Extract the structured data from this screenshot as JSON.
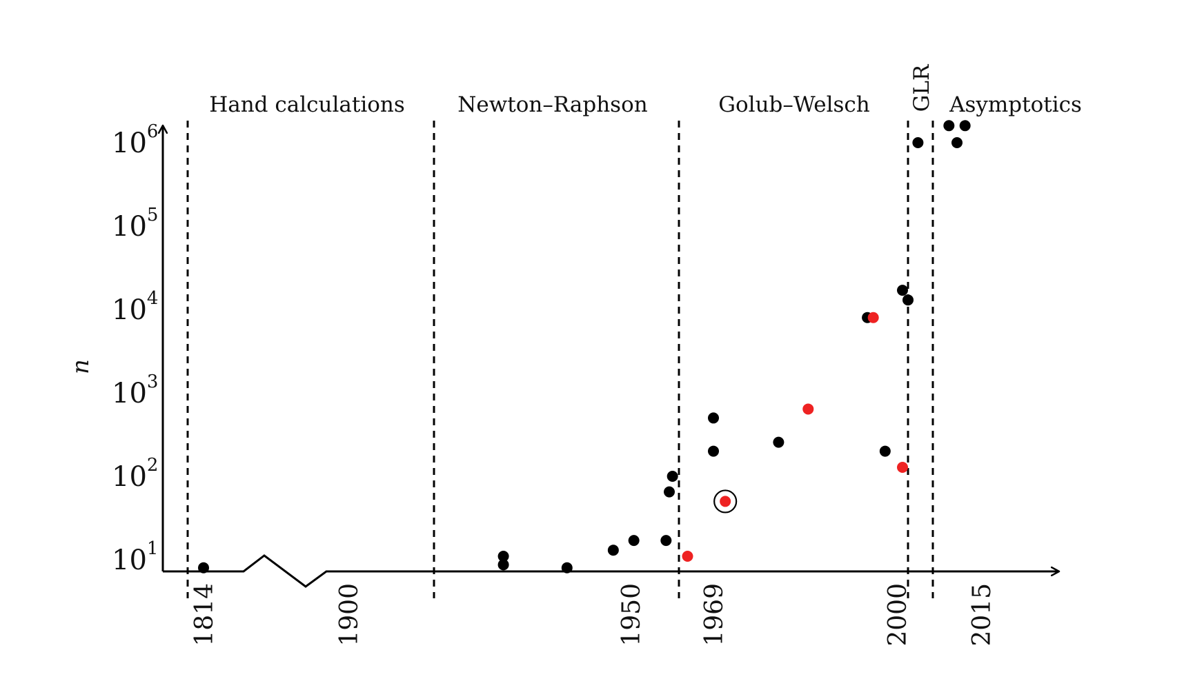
{
  "chart_data": {
    "type": "scatter",
    "title": "",
    "xlabel": "",
    "ylabel": "n",
    "y_scale": "log",
    "y_tick_labels": [
      {
        "base": "10",
        "exp": "1",
        "value": 10
      },
      {
        "base": "10",
        "exp": "2",
        "value": 100
      },
      {
        "base": "10",
        "exp": "3",
        "value": 1000
      },
      {
        "base": "10",
        "exp": "4",
        "value": 10000
      },
      {
        "base": "10",
        "exp": "5",
        "value": 100000
      },
      {
        "base": "10",
        "exp": "6",
        "value": 1000000
      }
    ],
    "x_ticks": [
      "1814",
      "1900",
      "1950",
      "1969",
      "2000",
      "2015"
    ],
    "x_axis_break": "between 1814 and 1900",
    "eras": [
      {
        "label": "Hand calculations",
        "orientation": "horizontal"
      },
      {
        "label": "Newton–Raphson",
        "orientation": "horizontal"
      },
      {
        "label": "Golub–Welsch",
        "orientation": "horizontal"
      },
      {
        "label": "GLR",
        "orientation": "vertical"
      },
      {
        "label": "Asymptotics",
        "orientation": "horizontal"
      }
    ],
    "era_boundaries": [
      1810,
      1916,
      1965,
      2004,
      2009
    ],
    "series": [
      {
        "name": "black",
        "color": "#000000",
        "points": [
          {
            "year": 1814,
            "n": 8
          },
          {
            "year": 1928,
            "n": 11
          },
          {
            "year": 1928,
            "n": 8.7
          },
          {
            "year": 1939,
            "n": 8
          },
          {
            "year": 1947,
            "n": 13
          },
          {
            "year": 1951,
            "n": 17
          },
          {
            "year": 1961,
            "n": 17
          },
          {
            "year": 1962,
            "n": 65
          },
          {
            "year": 1963,
            "n": 100
          },
          {
            "year": 1969,
            "n": 500
          },
          {
            "year": 1969,
            "n": 200
          },
          {
            "year": 1980,
            "n": 256
          },
          {
            "year": 1995,
            "n": 8000
          },
          {
            "year": 1998,
            "n": 200
          },
          {
            "year": 2002,
            "n": 17000
          },
          {
            "year": 2004,
            "n": 13000
          },
          {
            "year": 2006,
            "n": 1000000
          },
          {
            "year": 2011,
            "n": 1600000
          },
          {
            "year": 2012,
            "n": 1000000
          },
          {
            "year": 2013,
            "n": 1600000
          }
        ]
      },
      {
        "name": "red",
        "color": "#ee2222",
        "points": [
          {
            "year": 1966,
            "n": 11
          },
          {
            "year": 1971,
            "n": 50
          },
          {
            "year": 1985,
            "n": 640
          },
          {
            "year": 1996,
            "n": 8000
          },
          {
            "year": 2002,
            "n": 128
          }
        ]
      }
    ],
    "highlighted_point": {
      "series": "red",
      "year": 1971,
      "n": 50
    }
  }
}
